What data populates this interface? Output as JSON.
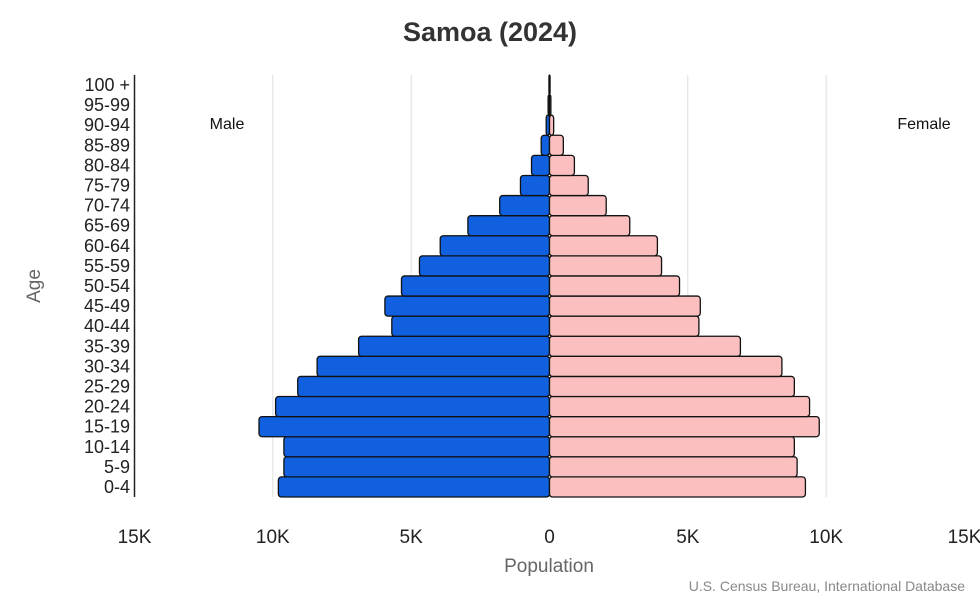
{
  "chart_data": {
    "type": "bar",
    "orientation": "horizontal-pyramid",
    "title": "Samoa (2024)",
    "xlabel": "Population",
    "ylabel": "Age",
    "source": "U.S. Census Bureau, International Database",
    "xlim": [
      -15000,
      15000
    ],
    "x_ticks": [
      "15K",
      "10K",
      "5K",
      "0",
      "5K",
      "10K",
      "15K"
    ],
    "grid": true,
    "categories": [
      "0-4",
      "5-9",
      "10-14",
      "15-19",
      "20-24",
      "25-29",
      "30-34",
      "35-39",
      "40-44",
      "45-49",
      "50-54",
      "55-59",
      "60-64",
      "65-69",
      "70-74",
      "75-79",
      "80-84",
      "85-89",
      "90-94",
      "95-99",
      "100 +"
    ],
    "series": [
      {
        "name": "Male",
        "color": "#1060e0",
        "values": [
          9800,
          9600,
          9600,
          10500,
          9900,
          9100,
          8400,
          6900,
          5700,
          5950,
          5350,
          4700,
          3950,
          2950,
          1800,
          1050,
          650,
          300,
          120,
          50,
          20
        ]
      },
      {
        "name": "Female",
        "color": "#fbbfbf",
        "values": [
          9250,
          8950,
          8850,
          9750,
          9400,
          8850,
          8400,
          6900,
          5400,
          5450,
          4700,
          4050,
          3900,
          2900,
          2050,
          1400,
          900,
          500,
          150,
          50,
          20
        ]
      }
    ]
  }
}
